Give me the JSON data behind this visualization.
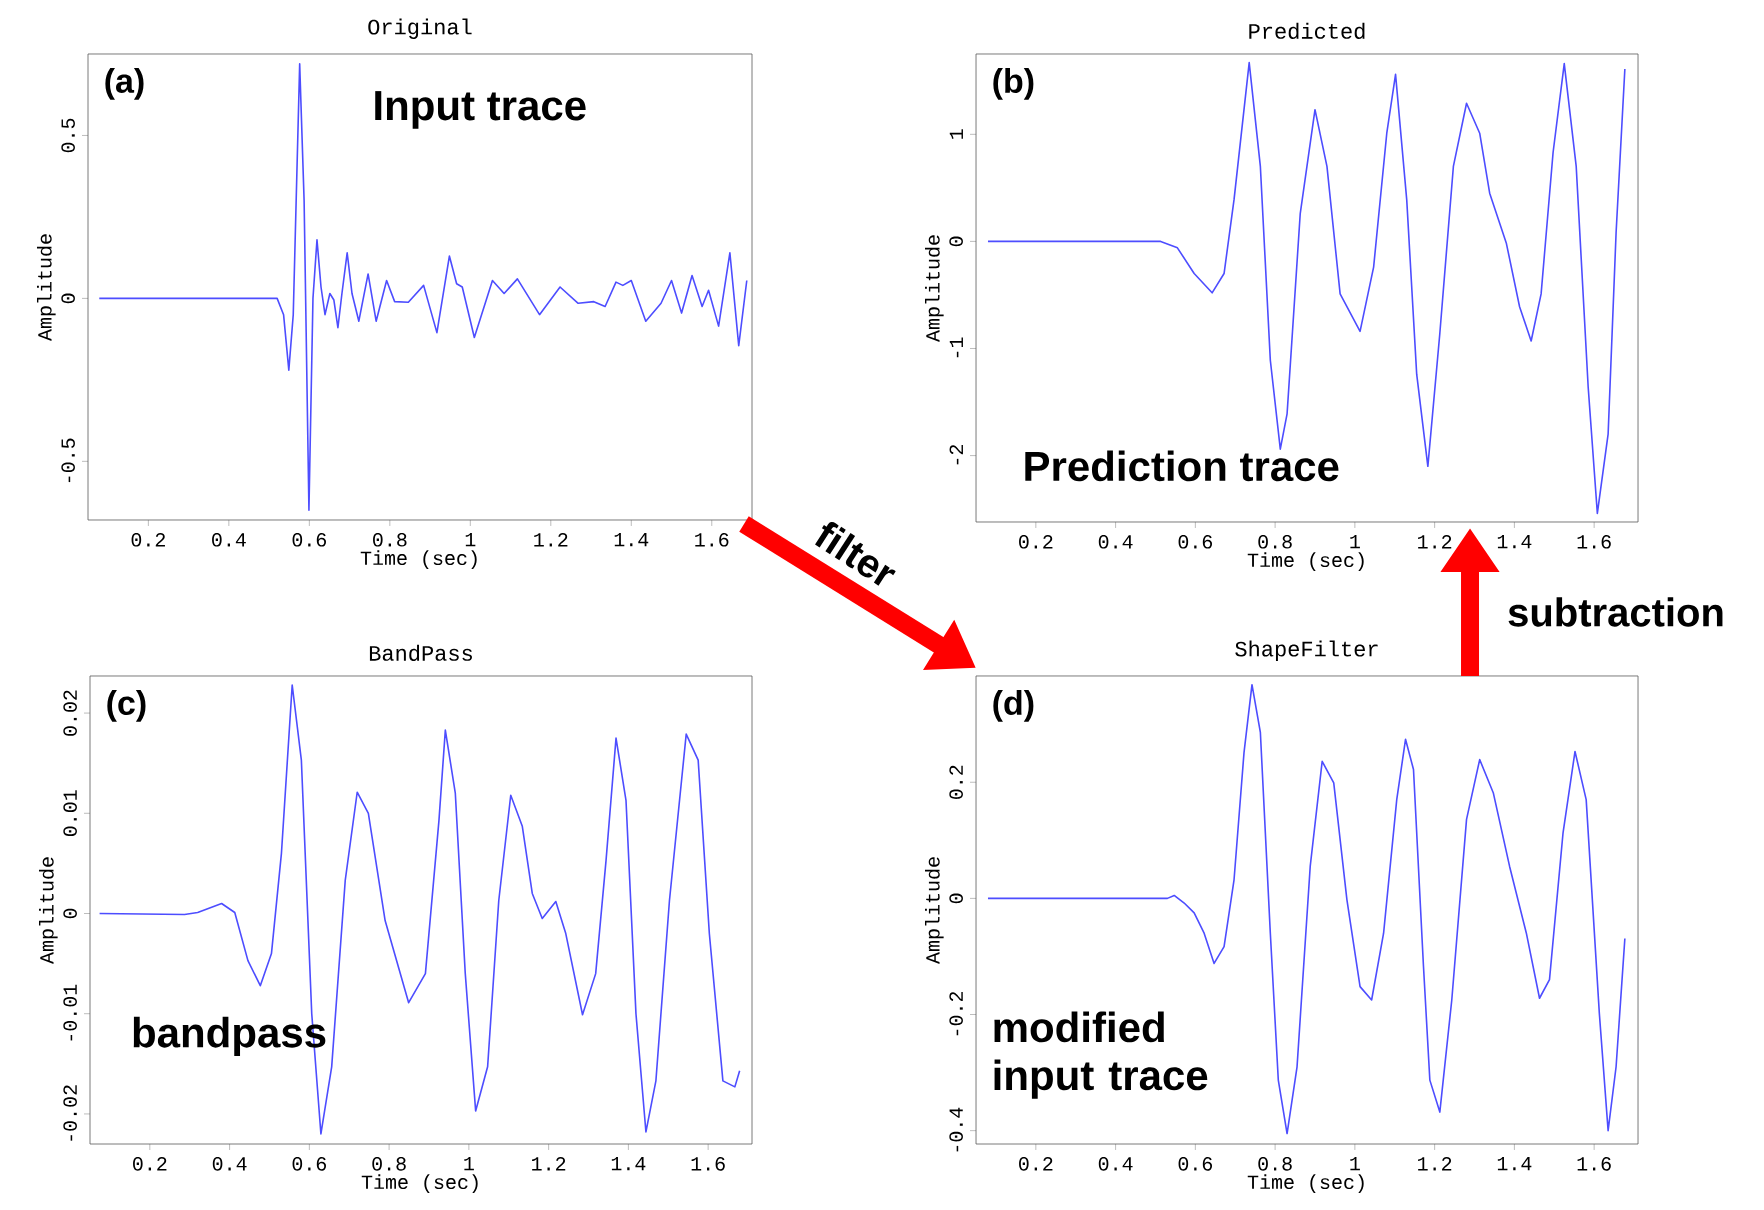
{
  "chart_data": [
    {
      "type": "line",
      "title": "Original",
      "xlabel": "Time (sec)",
      "ylabel": "Amplitude",
      "color": "#4d4dff",
      "xlim": [
        0.05,
        1.7
      ],
      "ylim": [
        -0.68,
        0.75
      ],
      "xticks": [
        0.2,
        0.4,
        0.6,
        0.8,
        1,
        1.2,
        1.4,
        1.6
      ],
      "yticks": [
        -0.5,
        0,
        0.5
      ],
      "annotations": [
        "(a)",
        "Input trace",
        "filter"
      ],
      "x": [
        0.078,
        0.502,
        0.52,
        0.536,
        0.549,
        0.56,
        0.576,
        0.587,
        0.599,
        0.609,
        0.619,
        0.629,
        0.639,
        0.651,
        0.661,
        0.671,
        0.681,
        0.694,
        0.706,
        0.723,
        0.746,
        0.766,
        0.792,
        0.812,
        0.846,
        0.884,
        0.917,
        0.948,
        0.966,
        0.98,
        1.01,
        1.055,
        1.084,
        1.117,
        1.172,
        1.223,
        1.268,
        1.307,
        1.335,
        1.362,
        1.379,
        1.4,
        1.436,
        1.474,
        1.5,
        1.525,
        1.551,
        1.576,
        1.592,
        1.617,
        1.645,
        1.667,
        1.687
      ],
      "values": [
        0,
        0,
        0,
        -0.05,
        -0.22,
        -0.05,
        0.72,
        0.3,
        -0.65,
        0,
        0.18,
        0.035,
        -0.05,
        0.015,
        -0.005,
        -0.09,
        0.015,
        0.14,
        0.015,
        -0.07,
        0.075,
        -0.07,
        0.055,
        -0.01,
        -0.012,
        0.04,
        -0.105,
        0.13,
        0.045,
        0.035,
        -0.12,
        0.055,
        0.015,
        0.06,
        -0.05,
        0.035,
        -0.015,
        -0.01,
        -0.025,
        0.05,
        0.04,
        0.055,
        -0.07,
        -0.015,
        0.055,
        -0.045,
        0.07,
        -0.025,
        0.025,
        -0.085,
        0.14,
        -0.145,
        0.055
      ]
    },
    {
      "type": "line",
      "title": "Predicted",
      "xlabel": "Time (sec)",
      "ylabel": "Amplitude",
      "color": "#4d4dff",
      "xlim": [
        0.05,
        1.71
      ],
      "ylim": [
        -2.62,
        1.75
      ],
      "xticks": [
        0.2,
        0.4,
        0.6,
        0.8,
        1,
        1.2,
        1.4,
        1.6
      ],
      "yticks": [
        -2,
        -1,
        0,
        1
      ],
      "annotations": [
        "(b)",
        "Prediction trace"
      ],
      "x": [
        0.08,
        0.513,
        0.555,
        0.597,
        0.642,
        0.672,
        0.697,
        0.735,
        0.763,
        0.788,
        0.813,
        0.83,
        0.863,
        0.9,
        0.93,
        0.963,
        1.013,
        1.047,
        1.08,
        1.102,
        1.13,
        1.155,
        1.183,
        1.213,
        1.247,
        1.28,
        1.313,
        1.338,
        1.38,
        1.413,
        1.442,
        1.467,
        1.497,
        1.525,
        1.555,
        1.585,
        1.608,
        1.635,
        1.655,
        1.677
      ],
      "values": [
        0,
        0,
        -0.06,
        -0.3,
        -0.48,
        -0.3,
        0.39,
        1.67,
        0.7,
        -1.11,
        -1.94,
        -1.61,
        0.26,
        1.23,
        0.7,
        -0.49,
        -0.84,
        -0.24,
        1.01,
        1.56,
        0.39,
        -1.24,
        -2.1,
        -0.86,
        0.7,
        1.29,
        1.01,
        0.45,
        -0.02,
        -0.61,
        -0.93,
        -0.49,
        0.83,
        1.66,
        0.7,
        -1.36,
        -2.54,
        -1.8,
        0.08,
        1.61
      ]
    },
    {
      "type": "line",
      "title": "BandPass",
      "xlabel": "Time (sec)",
      "ylabel": "Amplitude",
      "color": "#4d4dff",
      "xlim": [
        0.05,
        1.71
      ],
      "ylim": [
        -0.023,
        0.0237
      ],
      "xticks": [
        0.2,
        0.4,
        0.6,
        0.8,
        1,
        1.2,
        1.4,
        1.6
      ],
      "yticks": [
        -0.02,
        -0.01,
        0,
        0.01,
        0.02
      ],
      "annotations": [
        "(c)",
        "bandpass"
      ],
      "x": [
        0.074,
        0.287,
        0.32,
        0.38,
        0.413,
        0.446,
        0.477,
        0.505,
        0.53,
        0.557,
        0.58,
        0.606,
        0.629,
        0.656,
        0.69,
        0.72,
        0.748,
        0.79,
        0.849,
        0.891,
        0.925,
        0.941,
        0.966,
        0.991,
        1.017,
        1.047,
        1.075,
        1.105,
        1.134,
        1.159,
        1.184,
        1.218,
        1.243,
        1.285,
        1.318,
        1.344,
        1.369,
        1.394,
        1.419,
        1.444,
        1.469,
        1.503,
        1.545,
        1.575,
        1.603,
        1.637,
        1.667,
        1.679
      ],
      "values": [
        0,
        -0.0001,
        0.0001,
        0.001,
        0.0001,
        -0.0047,
        -0.0072,
        -0.004,
        0.006,
        0.0228,
        0.0153,
        -0.01,
        -0.022,
        -0.0153,
        0.0033,
        0.0121,
        0.01,
        -0.0007,
        -0.0089,
        -0.006,
        0.0093,
        0.0183,
        0.012,
        -0.006,
        -0.0197,
        -0.0153,
        0.0013,
        0.0118,
        0.0087,
        0.002,
        -0.0005,
        0.0012,
        -0.002,
        -0.0101,
        -0.006,
        0.0053,
        0.0175,
        0.0113,
        -0.01,
        -0.0218,
        -0.0167,
        0.0013,
        0.0179,
        0.0153,
        -0.002,
        -0.0167,
        -0.0173,
        -0.0157
      ]
    },
    {
      "type": "line",
      "title": "ShapeFilter",
      "xlabel": "Time (sec)",
      "ylabel": "Amplitude",
      "color": "#4d4dff",
      "xlim": [
        0.05,
        1.71
      ],
      "ylim": [
        -0.423,
        0.383
      ],
      "xticks": [
        0.2,
        0.4,
        0.6,
        0.8,
        1,
        1.2,
        1.4,
        1.6
      ],
      "yticks": [
        -0.4,
        -0.2,
        0,
        0.2
      ],
      "annotations": [
        "(d)",
        "modified input trace",
        "subtraction"
      ],
      "x": [
        0.08,
        0.53,
        0.547,
        0.572,
        0.597,
        0.622,
        0.647,
        0.672,
        0.697,
        0.722,
        0.742,
        0.763,
        0.788,
        0.808,
        0.83,
        0.855,
        0.888,
        0.918,
        0.947,
        0.98,
        1.013,
        1.042,
        1.072,
        1.105,
        1.127,
        1.147,
        1.172,
        1.188,
        1.213,
        1.243,
        1.28,
        1.313,
        1.347,
        1.388,
        1.43,
        1.463,
        1.488,
        1.522,
        1.552,
        1.58,
        1.613,
        1.635,
        1.655,
        1.677
      ],
      "values": [
        0,
        0,
        0.005,
        -0.008,
        -0.025,
        -0.06,
        -0.112,
        -0.083,
        0.032,
        0.251,
        0.368,
        0.286,
        -0.06,
        -0.313,
        -0.405,
        -0.29,
        0.055,
        0.236,
        0.199,
        -0.002,
        -0.152,
        -0.175,
        -0.06,
        0.17,
        0.274,
        0.222,
        -0.117,
        -0.313,
        -0.368,
        -0.175,
        0.136,
        0.239,
        0.182,
        0.055,
        -0.06,
        -0.172,
        -0.14,
        0.113,
        0.253,
        0.17,
        -0.198,
        -0.4,
        -0.29,
        -0.069
      ]
    }
  ]
}
